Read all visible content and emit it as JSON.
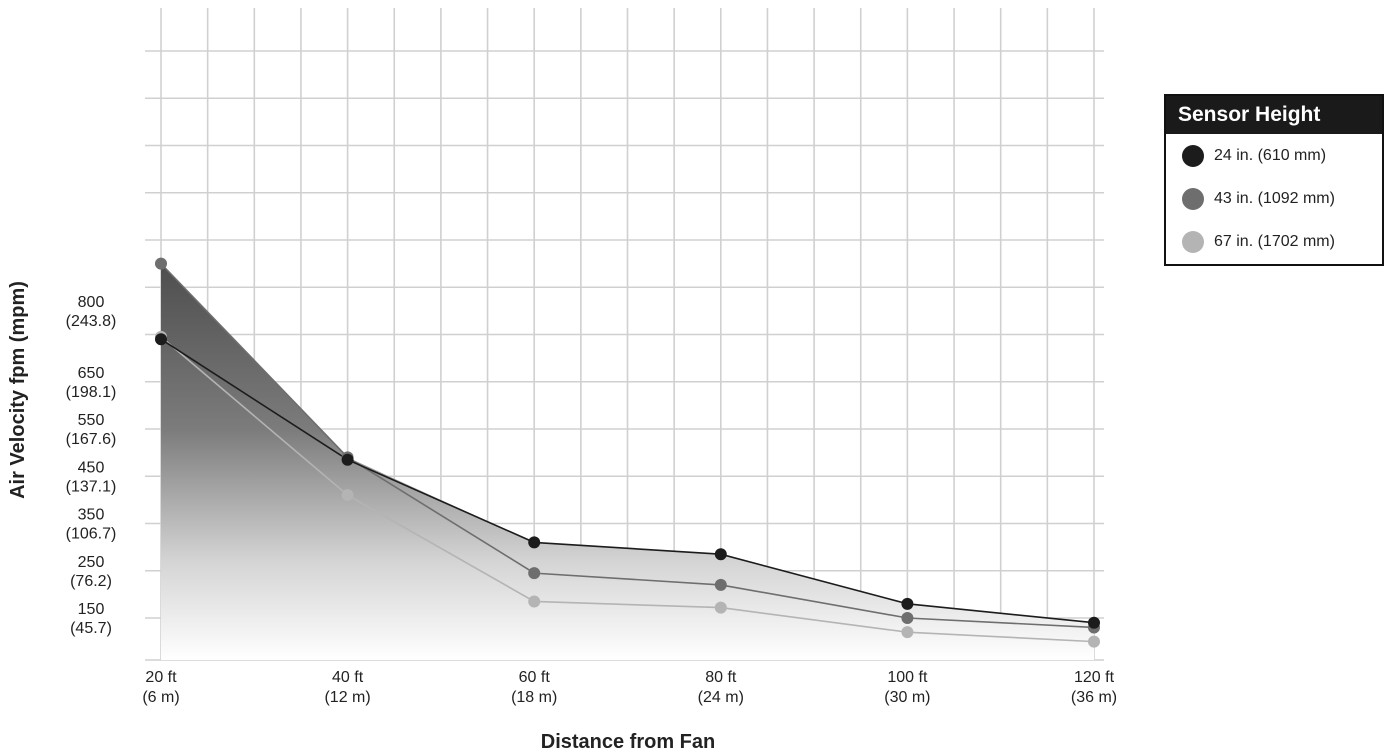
{
  "chart_data": {
    "type": "line",
    "title": "",
    "xlabel": "Distance from Fan",
    "ylabel": "Air Velocity fpm (mpm)",
    "x": [
      20,
      40,
      60,
      80,
      100,
      120
    ],
    "x_tick_labels": [
      {
        "ft": "20 ft",
        "m": "(6 m)"
      },
      {
        "ft": "40 ft",
        "m": "(12 m)"
      },
      {
        "ft": "60 ft",
        "m": "(18 m)"
      },
      {
        "ft": "80 ft",
        "m": "(24 m)"
      },
      {
        "ft": "100 ft",
        "m": "(30 m)"
      },
      {
        "ft": "120 ft",
        "m": "(36 m)"
      }
    ],
    "y_tick_values": [
      150,
      250,
      350,
      450,
      550,
      650,
      800
    ],
    "y_tick_labels": [
      {
        "fpm": "150",
        "mpm": "(45.7)"
      },
      {
        "fpm": "250",
        "mpm": "(76.2)"
      },
      {
        "fpm": "350",
        "mpm": "(106.7)"
      },
      {
        "fpm": "450",
        "mpm": "(137.1)"
      },
      {
        "fpm": "550",
        "mpm": "(167.6)"
      },
      {
        "fpm": "650",
        "mpm": "(198.1)"
      },
      {
        "fpm": "800",
        "mpm": "(243.8)"
      }
    ],
    "xlim": [
      20,
      120
    ],
    "grid": true,
    "legend_position": "right",
    "series": [
      {
        "name": "24 in. (610 mm)",
        "color": "#1c1c1c",
        "values": [
          740,
          485,
          310,
          285,
          180,
          140
        ]
      },
      {
        "name": "43 in. (1092 mm)",
        "color": "#6e6e6e",
        "values": [
          900,
          490,
          245,
          220,
          150,
          130
        ]
      },
      {
        "name": "67 in. (1702 mm)",
        "color": "#b4b4b4",
        "values": [
          745,
          410,
          185,
          172,
          120,
          100
        ]
      }
    ]
  },
  "legend": {
    "title": "Sensor Height"
  }
}
